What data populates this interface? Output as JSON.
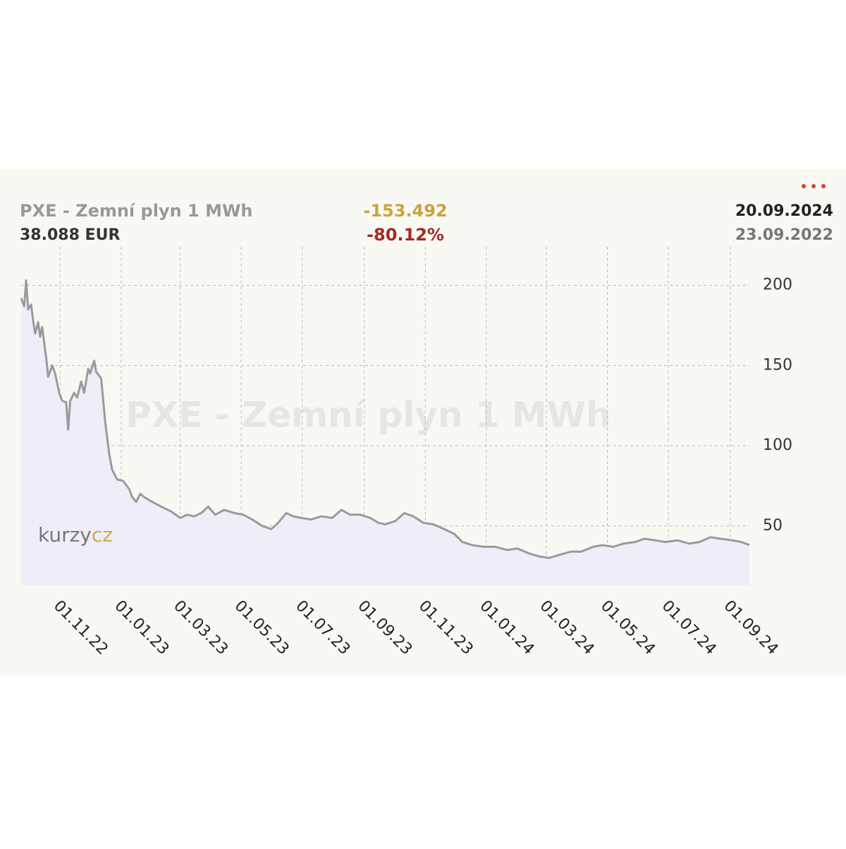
{
  "chart_data": {
    "type": "line",
    "title": "PXE - Zemní plyn 1 MWh",
    "last_value_label": "38.088 EUR",
    "change": "-153.492",
    "change_percent": "-80.12%",
    "end_date_label": "20.09.2024",
    "start_date_label": "23.09.2022",
    "logo": [
      "kurzy",
      "cz"
    ],
    "color": "#9a9a9a",
    "area_color": "#eeeef8",
    "grid": true,
    "x": [
      "2022-09-23",
      "2022-09-26",
      "2022-09-28",
      "2022-09-30",
      "2022-10-03",
      "2022-10-05",
      "2022-10-07",
      "2022-10-10",
      "2022-10-12",
      "2022-10-14",
      "2022-10-18",
      "2022-10-20",
      "2022-10-24",
      "2022-10-27",
      "2022-10-31",
      "2022-11-03",
      "2022-11-07",
      "2022-11-09",
      "2022-11-11",
      "2022-11-15",
      "2022-11-18",
      "2022-11-22",
      "2022-11-25",
      "2022-11-29",
      "2022-12-01",
      "2022-12-05",
      "2022-12-07",
      "2022-12-12",
      "2022-12-16",
      "2022-12-20",
      "2022-12-23",
      "2022-12-28",
      "2023-01-03",
      "2023-01-09",
      "2023-01-12",
      "2023-01-16",
      "2023-01-20",
      "2023-01-24",
      "2023-02-01",
      "2023-02-10",
      "2023-02-20",
      "2023-03-01",
      "2023-03-08",
      "2023-03-15",
      "2023-03-22",
      "2023-03-29",
      "2023-04-05",
      "2023-04-14",
      "2023-04-24",
      "2023-05-03",
      "2023-05-12",
      "2023-05-22",
      "2023-05-31",
      "2023-06-07",
      "2023-06-15",
      "2023-06-22",
      "2023-06-30",
      "2023-07-10",
      "2023-07-20",
      "2023-07-31",
      "2023-08-09",
      "2023-08-18",
      "2023-08-28",
      "2023-09-07",
      "2023-09-15",
      "2023-09-22",
      "2023-10-02",
      "2023-10-11",
      "2023-10-20",
      "2023-10-30",
      "2023-11-09",
      "2023-11-20",
      "2023-11-30",
      "2023-12-08",
      "2023-12-18",
      "2023-12-29",
      "2024-01-10",
      "2024-01-22",
      "2024-02-01",
      "2024-02-12",
      "2024-02-23",
      "2024-03-04",
      "2024-03-14",
      "2024-03-26",
      "2024-04-05",
      "2024-04-17",
      "2024-04-26",
      "2024-05-07",
      "2024-05-17",
      "2024-05-29",
      "2024-06-07",
      "2024-06-18",
      "2024-06-28",
      "2024-07-10",
      "2024-07-22",
      "2024-08-01",
      "2024-08-12",
      "2024-08-22",
      "2024-09-03",
      "2024-09-12",
      "2024-09-20"
    ],
    "values": [
      192,
      187,
      203,
      185,
      188,
      178,
      170,
      177,
      168,
      174,
      155,
      143,
      150,
      145,
      133,
      128,
      127,
      110,
      128,
      133,
      130,
      140,
      133,
      148,
      145,
      153,
      146,
      142,
      115,
      95,
      85,
      79,
      78,
      73,
      68,
      65,
      70,
      68,
      65,
      62,
      59,
      55,
      57,
      56,
      58,
      62,
      57,
      60,
      58,
      57,
      54,
      50,
      48,
      52,
      58,
      56,
      55,
      54,
      56,
      55,
      60,
      57,
      57,
      55,
      52,
      51,
      53,
      58,
      56,
      52,
      51,
      48,
      45,
      40,
      38,
      37,
      37,
      35,
      36,
      33,
      31,
      30,
      32,
      34,
      34,
      37,
      38,
      37,
      39,
      40,
      42,
      41,
      40,
      41,
      39,
      40,
      43,
      42,
      41,
      40,
      38.088
    ],
    "xlim": [
      "2022-09-23",
      "2024-09-20"
    ],
    "xticks": [
      {
        "value": "2022-11-01",
        "label": "01.11.22"
      },
      {
        "value": "2023-01-01",
        "label": "01.01.23"
      },
      {
        "value": "2023-03-01",
        "label": "01.03.23"
      },
      {
        "value": "2023-05-01",
        "label": "01.05.23"
      },
      {
        "value": "2023-07-01",
        "label": "01.07.23"
      },
      {
        "value": "2023-09-01",
        "label": "01.09.23"
      },
      {
        "value": "2023-11-01",
        "label": "01.11.23"
      },
      {
        "value": "2024-01-01",
        "label": "01.01.24"
      },
      {
        "value": "2024-03-01",
        "label": "01.03.24"
      },
      {
        "value": "2024-05-01",
        "label": "01.05.24"
      },
      {
        "value": "2024-07-01",
        "label": "01.07.24"
      },
      {
        "value": "2024-09-01",
        "label": "01.09.24"
      }
    ],
    "ylim": [
      13,
      224
    ],
    "yticks": [
      50,
      100,
      150,
      200
    ]
  }
}
